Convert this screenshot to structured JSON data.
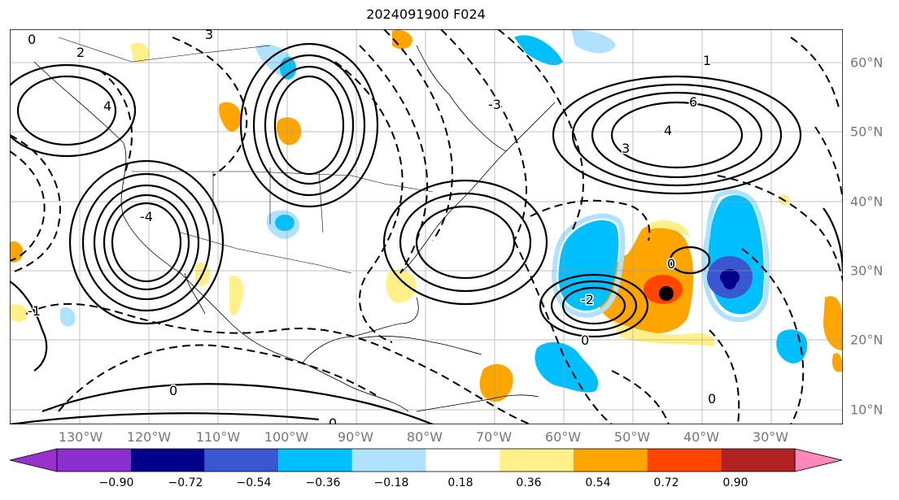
{
  "title": "2024091900 F024",
  "map": {
    "lon_labels": [
      "130°W",
      "120°W",
      "110°W",
      "100°W",
      "90°W",
      "80°W",
      "70°W",
      "60°W",
      "50°W",
      "40°W",
      "30°W"
    ],
    "lat_labels": [
      "60°N",
      "50°N",
      "40°N",
      "30°N",
      "20°N",
      "10°N"
    ],
    "contour_labels": [
      "0",
      "2",
      "3",
      "4",
      "-4",
      "-3",
      "-2",
      "-1",
      "6",
      "1"
    ],
    "markers": [
      {
        "name": "black-dot",
        "color": "#000000"
      },
      {
        "name": "navy-dot",
        "color": "#00008b"
      }
    ]
  },
  "colorbar": {
    "ticks": [
      "−0.90",
      "−0.72",
      "−0.54",
      "−0.36",
      "−0.18",
      "0.18",
      "0.36",
      "0.54",
      "0.72",
      "0.90"
    ],
    "colors": [
      "#9932cc",
      "#8b2fd1",
      "#00008b",
      "#3a56d0",
      "#00bfff",
      "#b0e2ff",
      "#ffffff",
      "#fff08a",
      "#ffa500",
      "#ff4500",
      "#b22222",
      "#ff88b8"
    ]
  }
}
